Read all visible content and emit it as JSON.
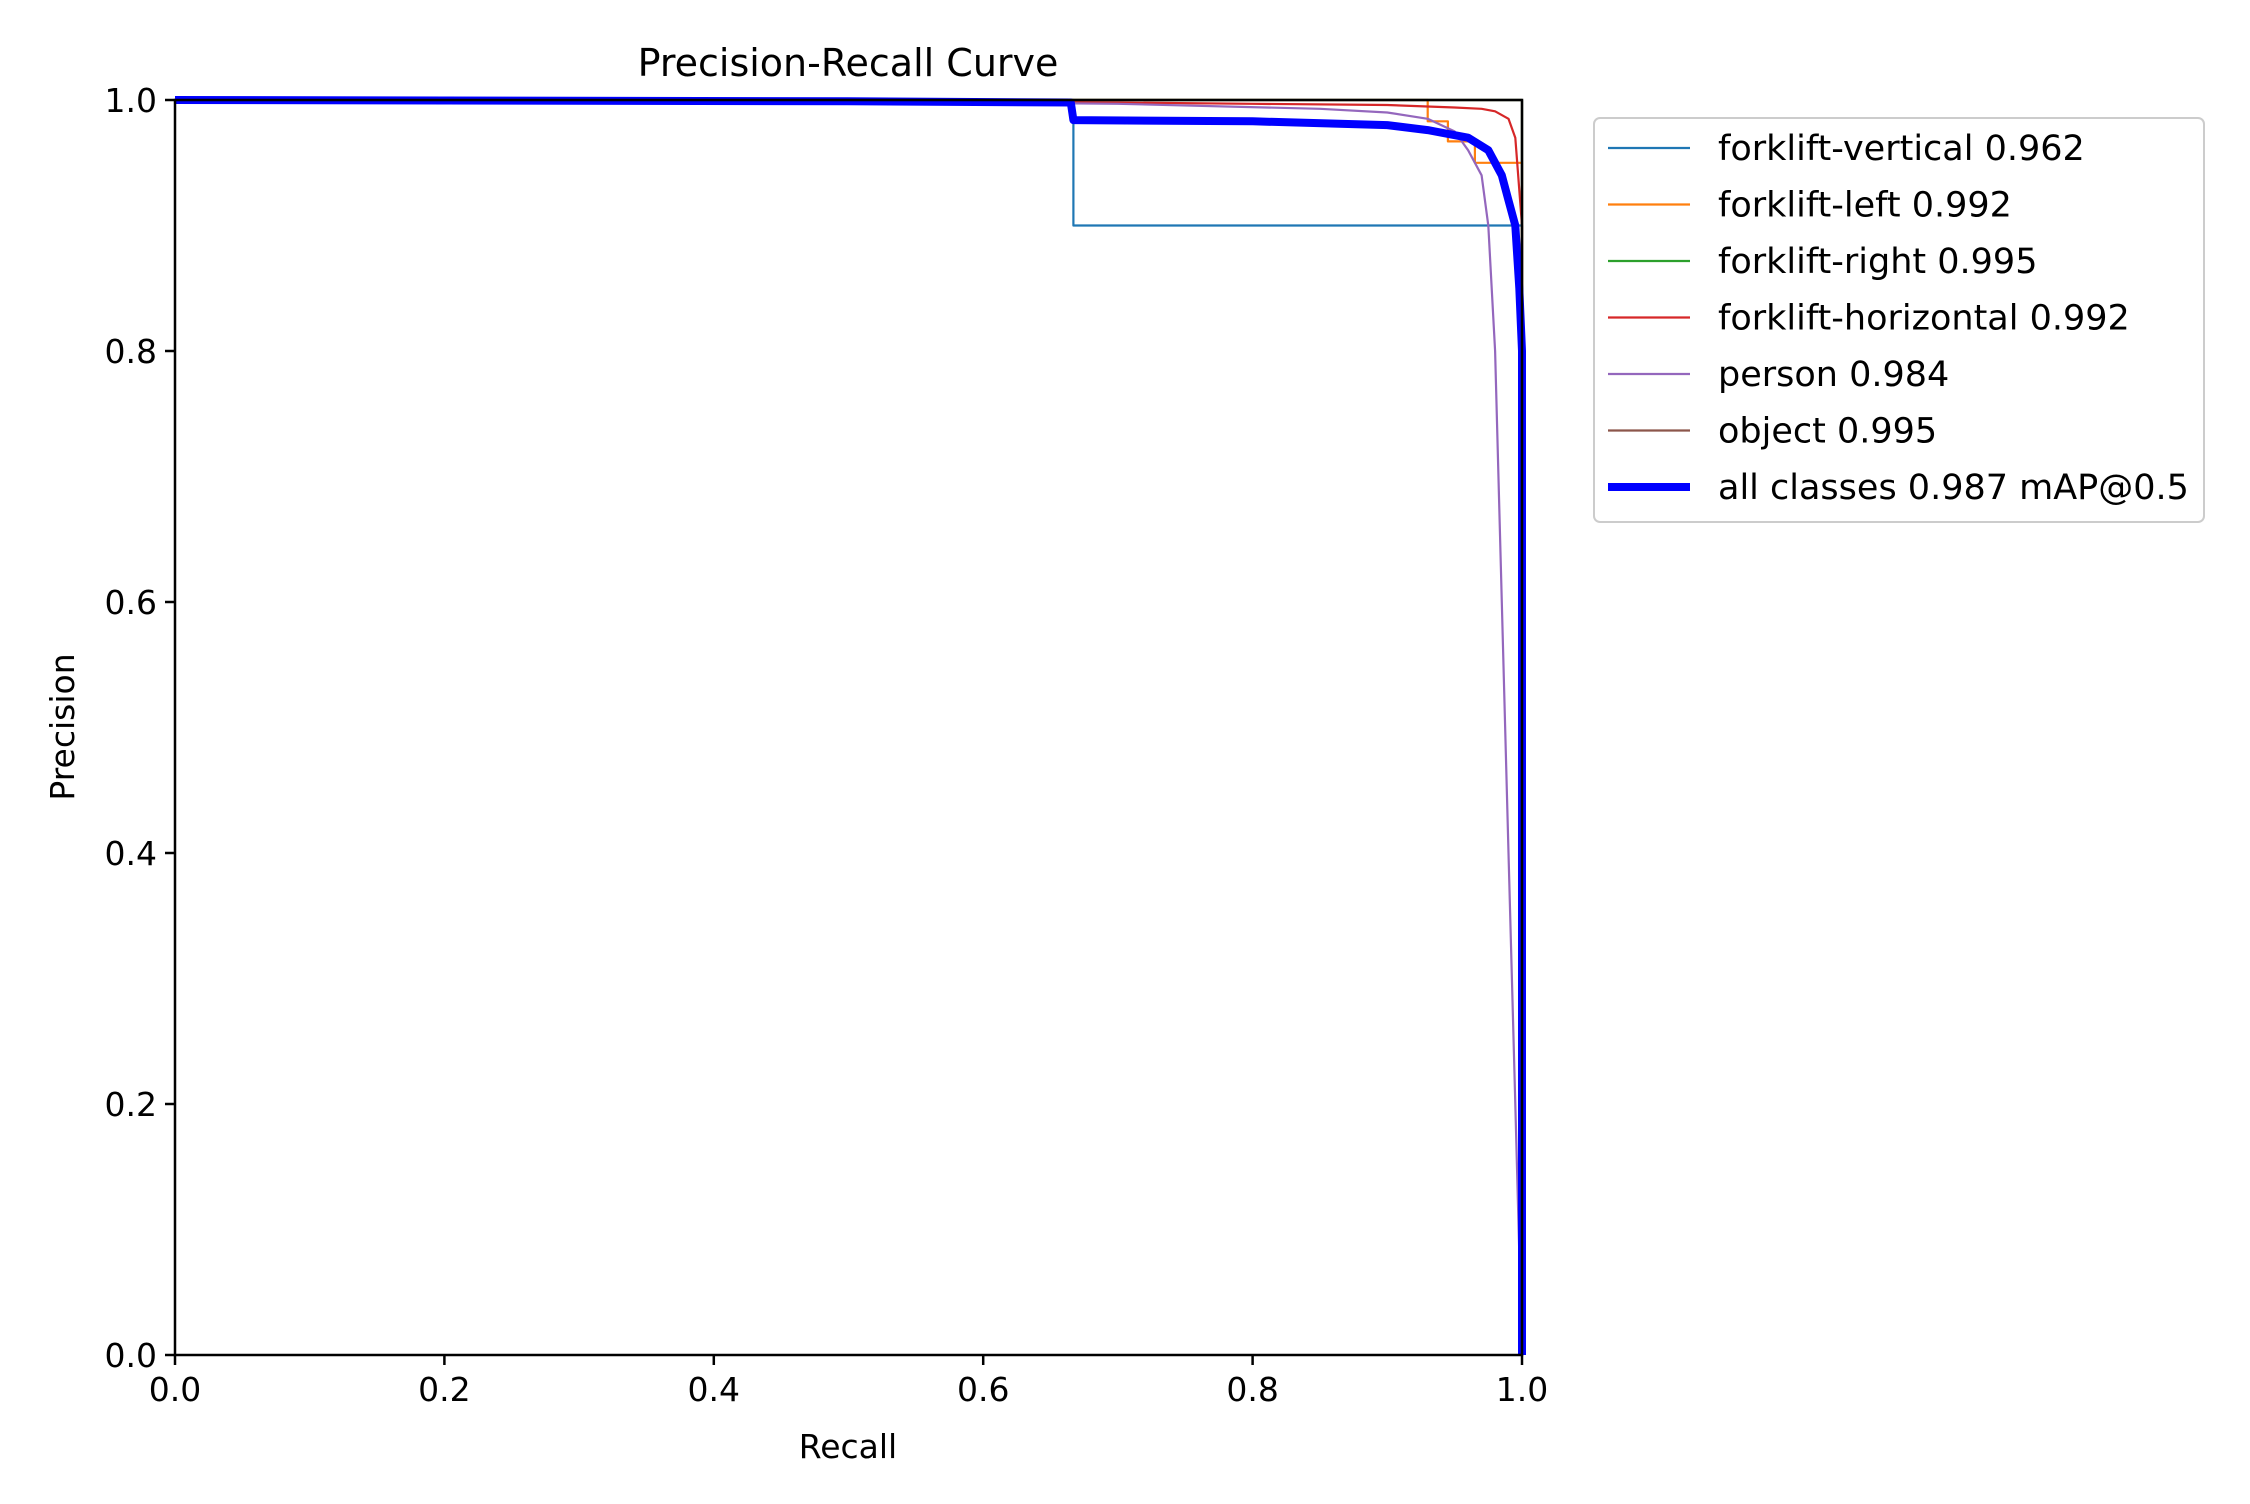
{
  "chart_data": {
    "type": "line",
    "title": "Precision-Recall Curve",
    "xlabel": "Recall",
    "ylabel": "Precision",
    "xlim": [
      0,
      1
    ],
    "ylim": [
      0,
      1
    ],
    "xticks": [
      "0.0",
      "0.2",
      "0.4",
      "0.6",
      "0.8",
      "1.0"
    ],
    "yticks": [
      "0.0",
      "0.2",
      "0.4",
      "0.6",
      "0.8",
      "1.0"
    ],
    "grid": false,
    "legend_position": "outside-top-right",
    "series": [
      {
        "name": "forklift-vertical 0.962",
        "color": "#1f77b4",
        "points": [
          [
            0,
            1.0
          ],
          [
            0.667,
            1.0
          ],
          [
            0.667,
            0.9
          ],
          [
            1.0,
            0.9
          ],
          [
            1.0,
            0.0
          ]
        ]
      },
      {
        "name": "forklift-left 0.992",
        "color": "#ff7f0e",
        "points": [
          [
            0,
            1.0
          ],
          [
            0.93,
            1.0
          ],
          [
            0.93,
            0.983
          ],
          [
            0.945,
            0.983
          ],
          [
            0.945,
            0.967
          ],
          [
            0.965,
            0.967
          ],
          [
            0.965,
            0.95
          ],
          [
            1.0,
            0.95
          ],
          [
            1.0,
            0.0
          ]
        ]
      },
      {
        "name": "forklift-right 0.995",
        "color": "#2ca02c",
        "points": [
          [
            0,
            1.0
          ],
          [
            1.0,
            1.0
          ],
          [
            1.0,
            0.0
          ]
        ]
      },
      {
        "name": "forklift-horizontal 0.992",
        "color": "#d62728",
        "points": [
          [
            0,
            1.0
          ],
          [
            0.6,
            0.999
          ],
          [
            0.8,
            0.997
          ],
          [
            0.9,
            0.996
          ],
          [
            0.95,
            0.994
          ],
          [
            0.97,
            0.993
          ],
          [
            0.98,
            0.991
          ],
          [
            0.99,
            0.985
          ],
          [
            0.995,
            0.97
          ],
          [
            1.0,
            0.9
          ],
          [
            1.0,
            0.0
          ]
        ]
      },
      {
        "name": "person 0.984",
        "color": "#9467bd",
        "points": [
          [
            0,
            1.0
          ],
          [
            0.5,
            0.999
          ],
          [
            0.7,
            0.997
          ],
          [
            0.85,
            0.993
          ],
          [
            0.9,
            0.99
          ],
          [
            0.93,
            0.985
          ],
          [
            0.95,
            0.975
          ],
          [
            0.96,
            0.96
          ],
          [
            0.97,
            0.94
          ],
          [
            0.975,
            0.9
          ],
          [
            0.98,
            0.8
          ],
          [
            0.985,
            0.6
          ],
          [
            0.99,
            0.4
          ],
          [
            0.995,
            0.2
          ],
          [
            1.0,
            0.0
          ]
        ]
      },
      {
        "name": "object 0.995",
        "color": "#8c564b",
        "points": [
          [
            0,
            1.0
          ],
          [
            1.0,
            1.0
          ],
          [
            1.0,
            0.0
          ]
        ]
      },
      {
        "name": "all classes 0.987 mAP@0.5",
        "color": "#0000ff",
        "bold": true,
        "points": [
          [
            0,
            1.0
          ],
          [
            0.5,
            0.999
          ],
          [
            0.665,
            0.998
          ],
          [
            0.667,
            0.984
          ],
          [
            0.8,
            0.983
          ],
          [
            0.9,
            0.98
          ],
          [
            0.93,
            0.976
          ],
          [
            0.96,
            0.97
          ],
          [
            0.975,
            0.96
          ],
          [
            0.985,
            0.94
          ],
          [
            0.99,
            0.92
          ],
          [
            0.995,
            0.9
          ],
          [
            0.998,
            0.85
          ],
          [
            1.0,
            0.8
          ],
          [
            1.0,
            0.0
          ]
        ]
      }
    ]
  }
}
